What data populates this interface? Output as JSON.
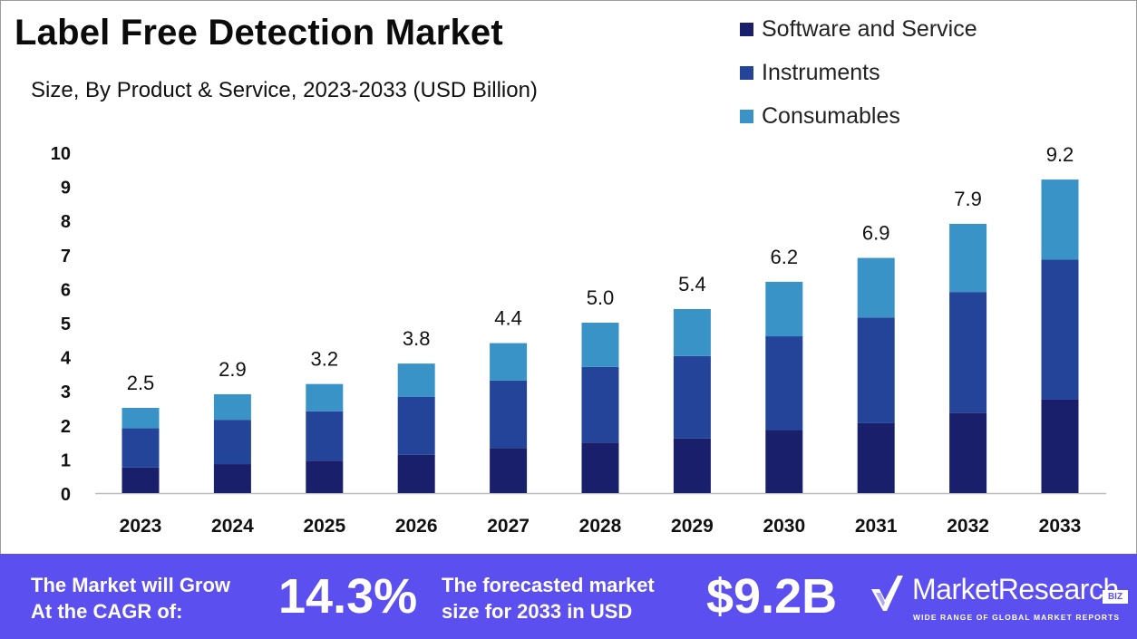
{
  "title": "Label Free Detection Market",
  "subtitle": "Size, By Product & Service, 2023-2033 (USD Billion)",
  "colors": {
    "software_and_service": "#1a1f6b",
    "instruments": "#24449a",
    "consumables": "#3a93c7",
    "footer_bg": "#5b4ff0",
    "axis": "#bdbdbd"
  },
  "chart_data": {
    "type": "bar",
    "stacked": true,
    "categories": [
      "2023",
      "2024",
      "2025",
      "2026",
      "2027",
      "2028",
      "2029",
      "2030",
      "2031",
      "2032",
      "2033"
    ],
    "series": [
      {
        "name": "Software and Service",
        "color": "#1a1f6b",
        "values": [
          0.75,
          0.85,
          0.95,
          1.12,
          1.32,
          1.48,
          1.6,
          1.85,
          2.05,
          2.35,
          2.75
        ]
      },
      {
        "name": "Instruments",
        "color": "#24449a",
        "values": [
          1.15,
          1.3,
          1.45,
          1.7,
          1.98,
          2.22,
          2.42,
          2.75,
          3.1,
          3.55,
          4.1
        ]
      },
      {
        "name": "Consumables",
        "color": "#3a93c7",
        "values": [
          0.6,
          0.75,
          0.8,
          0.98,
          1.1,
          1.3,
          1.38,
          1.6,
          1.75,
          2.0,
          2.35
        ]
      }
    ],
    "totals": [
      "2.5",
      "2.9",
      "3.2",
      "3.8",
      "4.4",
      "5.0",
      "5.4",
      "6.2",
      "6.9",
      "7.9",
      "9.2"
    ],
    "ylim": [
      0,
      10
    ],
    "yticks": [
      "0",
      "1",
      "2",
      "3",
      "4",
      "5",
      "6",
      "7",
      "8",
      "9",
      "10"
    ],
    "grid": false,
    "legend": "top-right"
  },
  "footer": {
    "cagr_label_line1": "The Market will Grow",
    "cagr_label_line2": "At the CAGR of:",
    "cagr_value": "14.3%",
    "forecast_label_line1": "The forecasted market",
    "forecast_label_line2": "size for 2033 in USD",
    "forecast_value": "$9.2B",
    "logo_name": "MarketResearch",
    "logo_badge": "BIZ",
    "logo_tagline": "WIDE RANGE OF GLOBAL MARKET REPORTS",
    "logo_icon": "checkmark-logo-icon"
  }
}
